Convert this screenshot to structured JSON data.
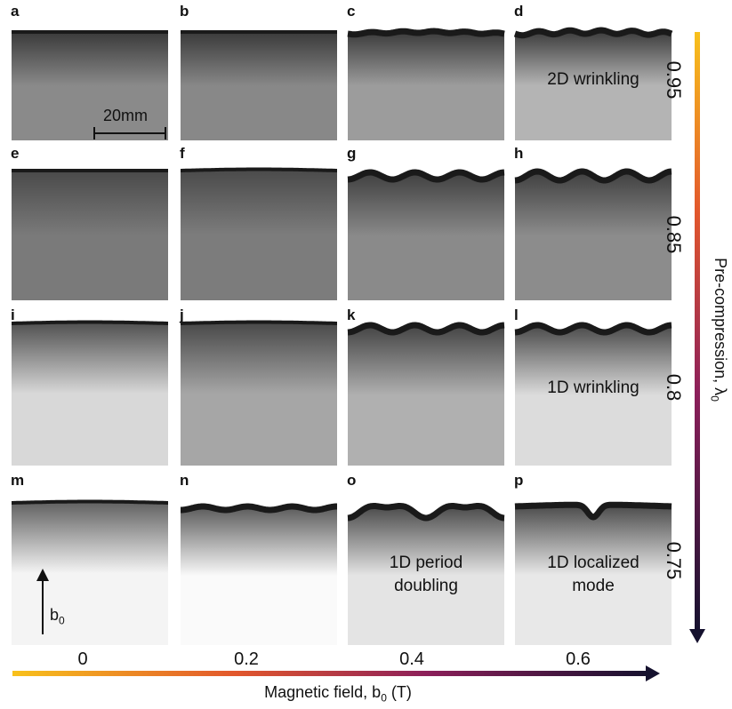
{
  "panels": [
    {
      "letter": "a",
      "annotation": ""
    },
    {
      "letter": "b",
      "annotation": ""
    },
    {
      "letter": "c",
      "annotation": ""
    },
    {
      "letter": "d",
      "annotation": "2D wrinkling"
    },
    {
      "letter": "e",
      "annotation": ""
    },
    {
      "letter": "f",
      "annotation": ""
    },
    {
      "letter": "g",
      "annotation": ""
    },
    {
      "letter": "h",
      "annotation": ""
    },
    {
      "letter": "i",
      "annotation": ""
    },
    {
      "letter": "j",
      "annotation": ""
    },
    {
      "letter": "k",
      "annotation": ""
    },
    {
      "letter": "l",
      "annotation": "1D wrinkling"
    },
    {
      "letter": "m",
      "annotation": ""
    },
    {
      "letter": "n",
      "annotation": ""
    },
    {
      "letter": "o",
      "annotation": "1D period\ndoubling"
    },
    {
      "letter": "p",
      "annotation": "1D localized\nmode"
    }
  ],
  "scale_bar": {
    "label": "20mm"
  },
  "field_arrow": {
    "label": "b",
    "subscript": "0"
  },
  "columns": [
    "0",
    "0.2",
    "0.4",
    "0.6"
  ],
  "rows": [
    "0.95",
    "0.85",
    "0.8",
    "0.75"
  ],
  "x_axis": {
    "title_prefix": "Magnetic field, b",
    "subscript": "0",
    "title_suffix": " (T)"
  },
  "y_axis": {
    "title_prefix": "Pre-compression, λ",
    "subscript": "0"
  },
  "colors": {
    "gradient_start": "#f8c11c",
    "gradient_mid1": "#e2572c",
    "gradient_mid2": "#8c1f5a",
    "gradient_end": "#15112e"
  }
}
